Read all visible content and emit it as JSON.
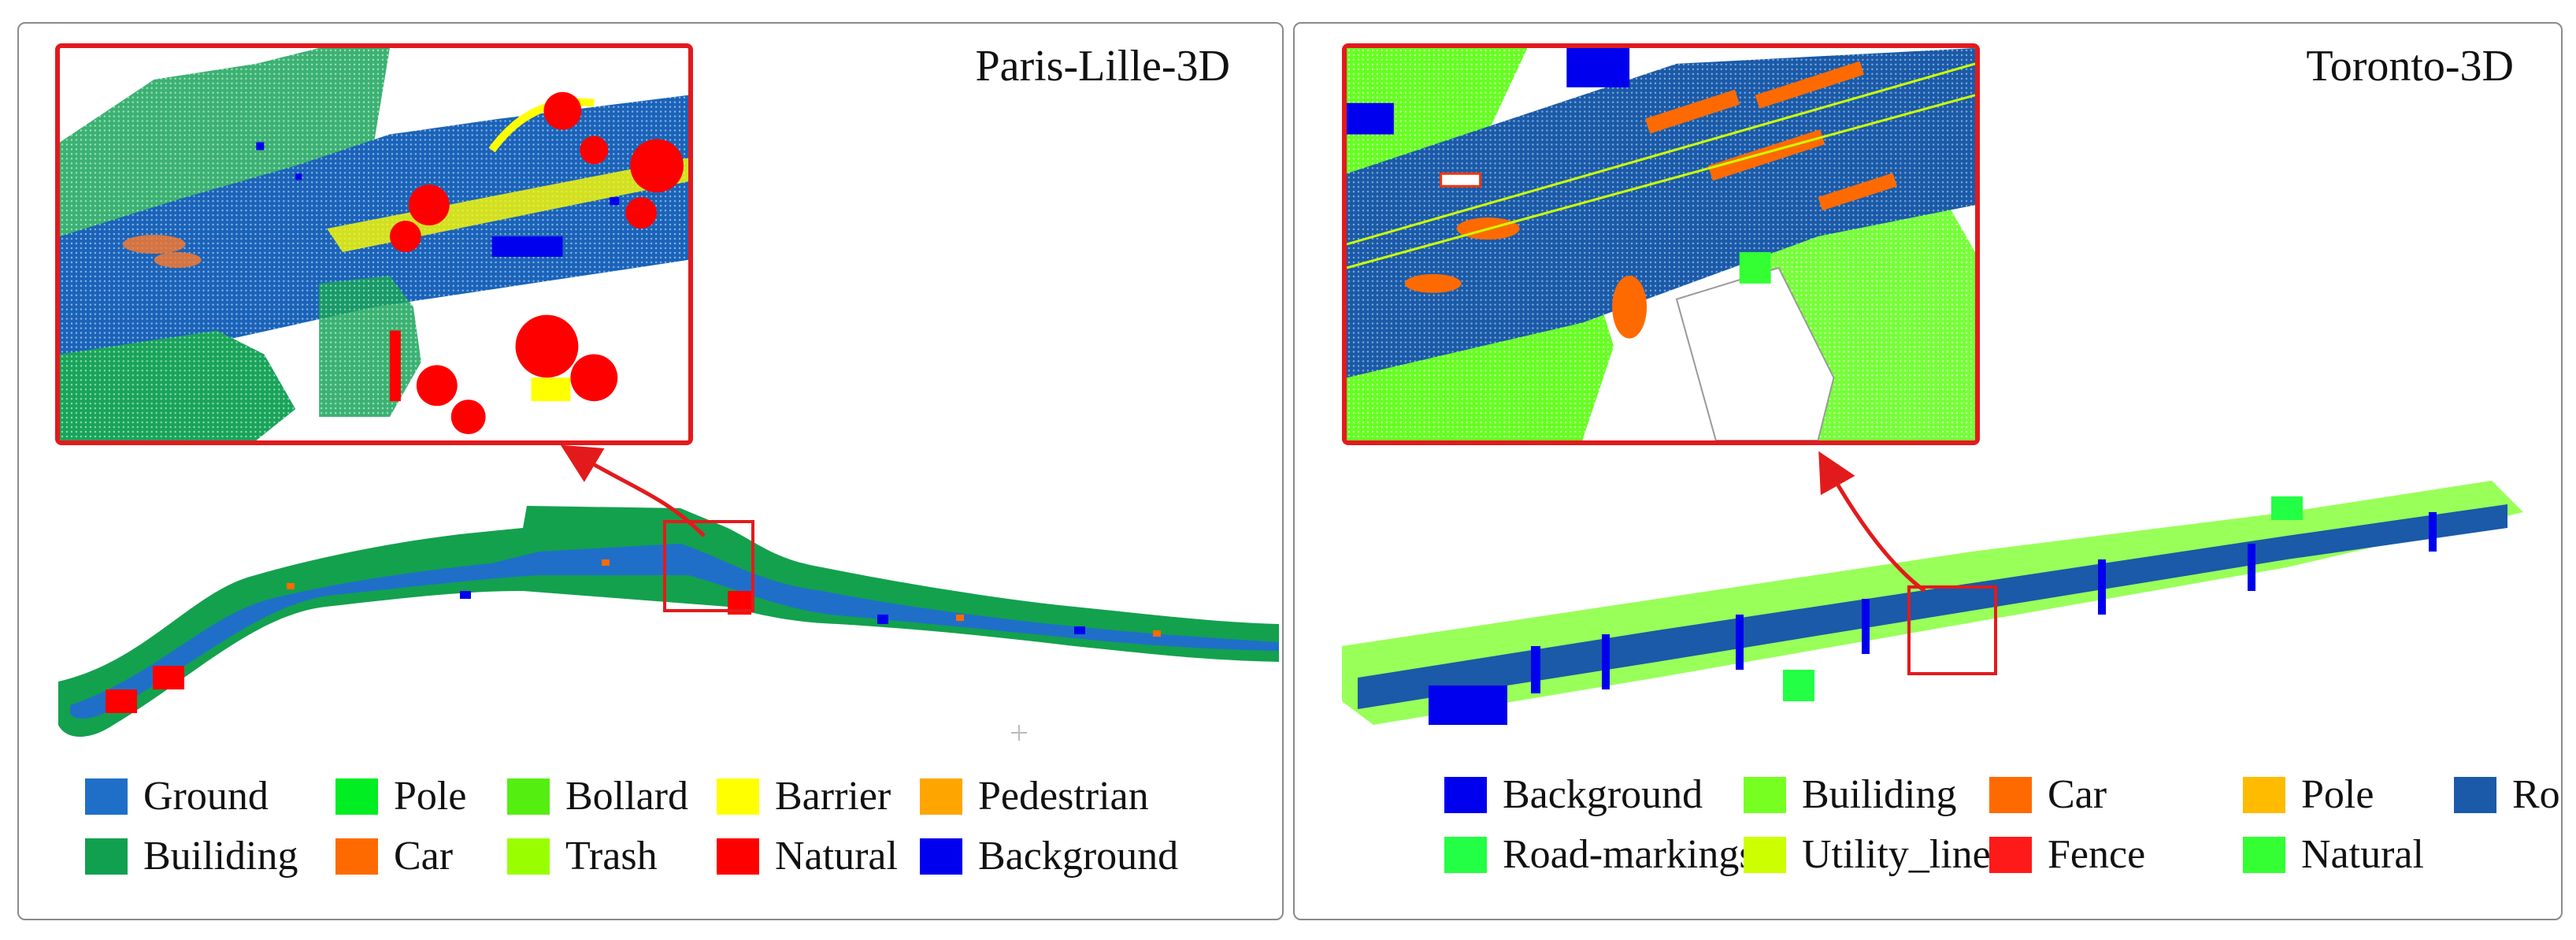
{
  "left_panel": {
    "title": "Paris-Lille-3D",
    "legend": [
      {
        "label": "Ground",
        "color": "#1f6fc9"
      },
      {
        "label": "Pole",
        "color": "#00ee22"
      },
      {
        "label": "Bollard",
        "color": "#55ee11"
      },
      {
        "label": "Barrier",
        "color": "#ffff00"
      },
      {
        "label": "Pedestrian",
        "color": "#ffa500"
      },
      {
        "label": "Builiding",
        "color": "#10a050"
      },
      {
        "label": "Car",
        "color": "#ff6a00"
      },
      {
        "label": "Trash",
        "color": "#99ff00"
      },
      {
        "label": "Natural",
        "color": "#ff0000"
      },
      {
        "label": "Background",
        "color": "#0000ee"
      }
    ]
  },
  "right_panel": {
    "title": "Toronto-3D",
    "legend": [
      {
        "label": "Background",
        "color": "#0000ee"
      },
      {
        "label": "Builiding",
        "color": "#77ff22"
      },
      {
        "label": "Car",
        "color": "#ff6a00"
      },
      {
        "label": "Pole",
        "color": "#ffbb00"
      },
      {
        "label": "Road",
        "color": "#1a5aa8"
      },
      {
        "label": "Road-markings",
        "color": "#22ff44"
      },
      {
        "label": "Utility_line",
        "color": "#ccff00"
      },
      {
        "label": "Fence",
        "color": "#ff1a1a"
      },
      {
        "label": "Natural",
        "color": "#33ff33"
      }
    ]
  },
  "colors": {
    "highlight": "#e31a1c",
    "frame": "#8a8a8a"
  }
}
